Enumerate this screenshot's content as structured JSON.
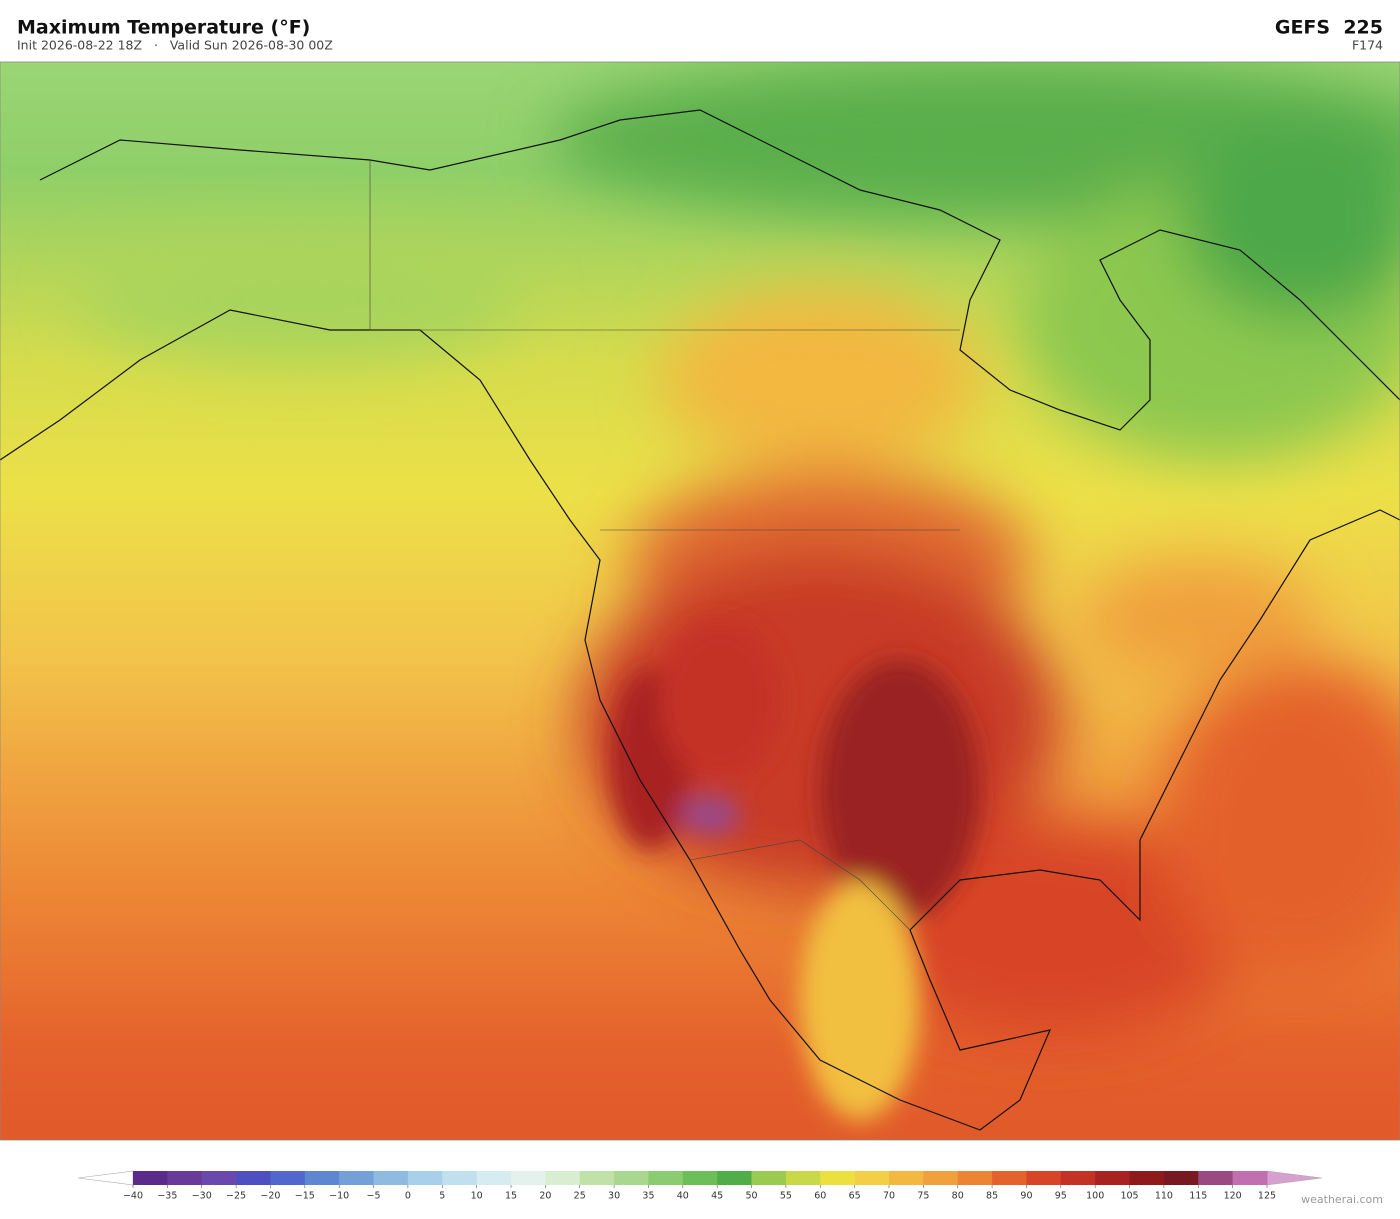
{
  "header": {
    "title": "Maximum Temperature  (°F)",
    "subtitle": "Init 2026-08-22 18Z   ·   Valid Sun 2026-08-30 00Z",
    "model": "GEFS  225",
    "forecast_hour": "F174"
  },
  "colorbar": {
    "ticks": [
      {
        "value": -40,
        "label": "−40"
      },
      {
        "value": -35,
        "label": "−35"
      },
      {
        "value": -30,
        "label": "−30"
      },
      {
        "value": -25,
        "label": "−25"
      },
      {
        "value": -20,
        "label": "−20"
      },
      {
        "value": -15,
        "label": "−15"
      },
      {
        "value": -10,
        "label": "−10"
      },
      {
        "value": -5,
        "label": "−5"
      },
      0,
      5,
      10,
      15,
      20,
      25,
      30,
      35,
      40,
      45,
      50,
      55,
      60,
      65,
      70,
      75,
      80,
      85,
      90,
      95,
      100,
      105,
      110,
      115,
      120,
      125
    ],
    "colors": [
      "#5b2a8a",
      "#6a3a9a",
      "#6b48ad",
      "#4e4fc0",
      "#5266cc",
      "#5f86d0",
      "#73a0d8",
      "#8fbbe0",
      "#a8d0ea",
      "#c0e0f0",
      "#d4ecf2",
      "#e4f2ee",
      "#d8eed0",
      "#c0e2a8",
      "#a8d890",
      "#8acc70",
      "#6cbe58",
      "#50ae48",
      "#9acb50",
      "#c8d848",
      "#ece040",
      "#f2cf46",
      "#f2b840",
      "#f0a03c",
      "#ec8434",
      "#e4622c",
      "#d84428",
      "#c43226",
      "#a82222",
      "#8e1a1c",
      "#781820",
      "#9a4a80",
      "#c070b0",
      "#d8a0d0"
    ],
    "under_color": "#ffffff",
    "over_color": "#d8a0d0"
  },
  "footer": {
    "credit": "weatherai.com"
  }
}
